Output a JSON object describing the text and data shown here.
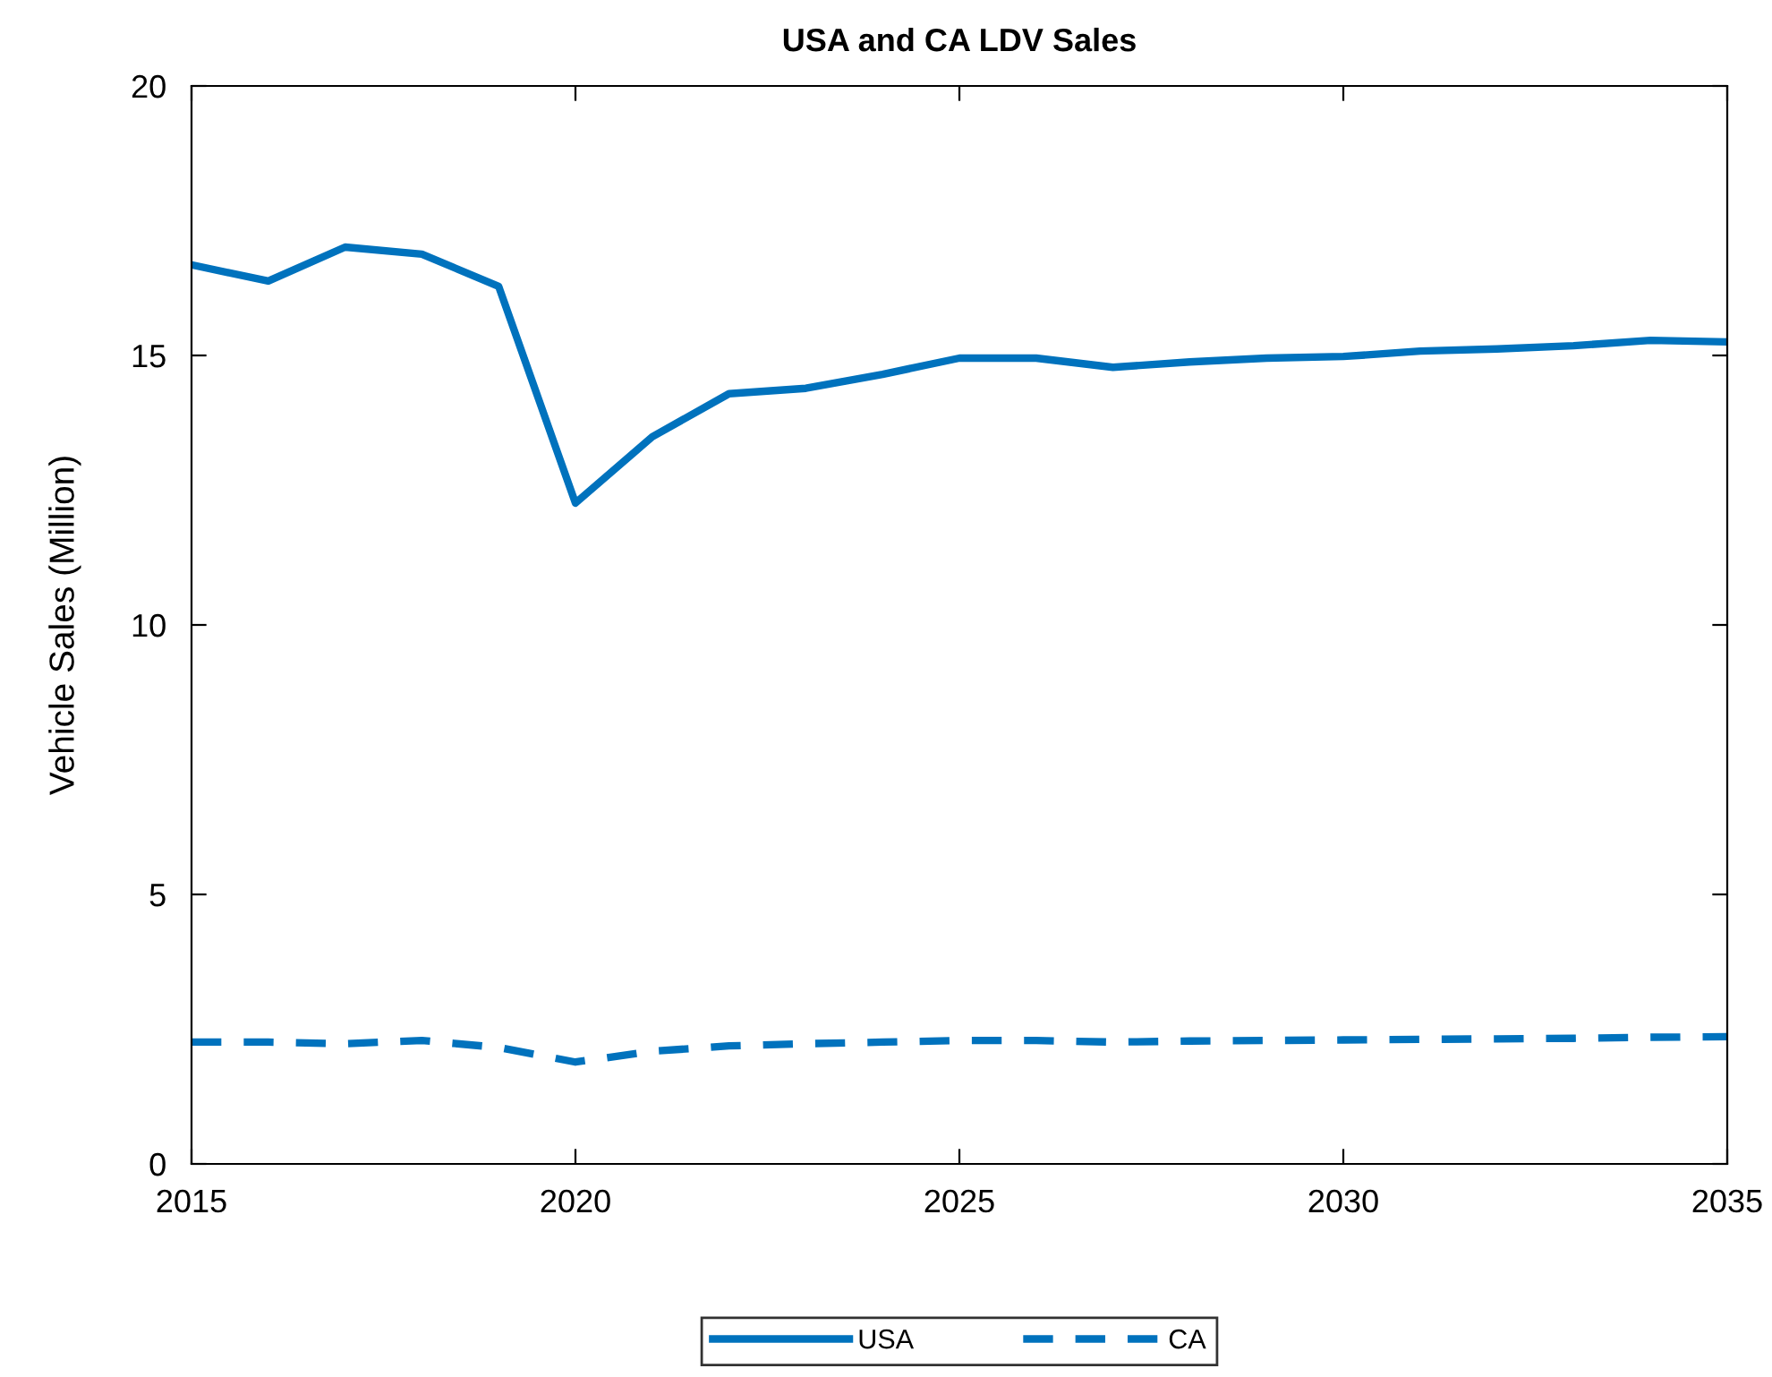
{
  "chart_data": {
    "type": "line",
    "title": "USA and CA LDV Sales",
    "ylabel": "Vehicle Sales (Million)",
    "x": [
      2015,
      2016,
      2017,
      2018,
      2019,
      2020,
      2021,
      2022,
      2023,
      2024,
      2025,
      2026,
      2027,
      2028,
      2029,
      2030,
      2031,
      2032,
      2033,
      2034,
      2035
    ],
    "series": [
      {
        "name": "USA",
        "color": "#0072bd",
        "line_style": "solid",
        "values": [
          16.68,
          16.38,
          17.01,
          16.88,
          16.28,
          12.26,
          13.49,
          14.29,
          14.39,
          14.65,
          14.95,
          14.95,
          14.78,
          14.88,
          14.95,
          14.98,
          15.08,
          15.12,
          15.18,
          15.28,
          15.25
        ]
      },
      {
        "name": "CA",
        "color": "#0072bd",
        "line_style": "dashed",
        "values": [
          2.26,
          2.26,
          2.23,
          2.29,
          2.16,
          1.89,
          2.09,
          2.19,
          2.23,
          2.26,
          2.29,
          2.29,
          2.26,
          2.28,
          2.29,
          2.3,
          2.31,
          2.32,
          2.33,
          2.35,
          2.36
        ]
      }
    ],
    "xlim": [
      2015,
      2035
    ],
    "xticks": [
      2015,
      2020,
      2025,
      2030,
      2035
    ],
    "ylim": [
      0,
      20
    ],
    "yticks": [
      0,
      5,
      10,
      15,
      20
    ],
    "grid": false,
    "legend": "bottom",
    "marker": "none"
  }
}
